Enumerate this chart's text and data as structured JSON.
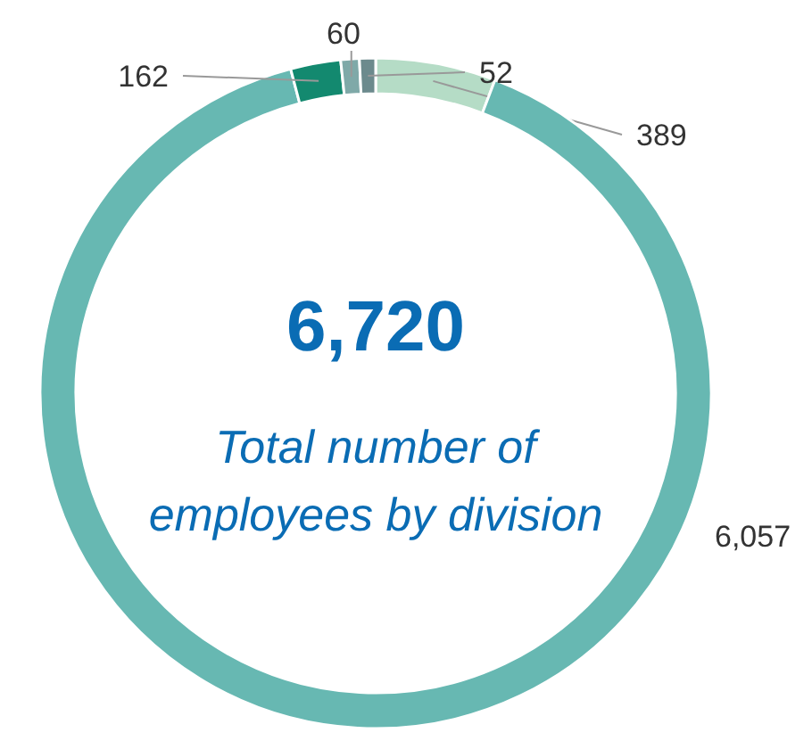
{
  "chart_data": {
    "type": "donut",
    "categories": [
      null,
      null,
      null,
      null,
      null
    ],
    "values": [
      389,
      6057,
      162,
      60,
      52
    ],
    "colors": [
      "#b5dcc6",
      "#67b8b2",
      "#13896f",
      "#7fa9a8",
      "#6c8a8d"
    ],
    "value_labels": [
      "389",
      "6,057",
      "162",
      "60",
      "52"
    ],
    "annotations": [
      "6,720",
      "Total number of employees by division"
    ]
  }
}
